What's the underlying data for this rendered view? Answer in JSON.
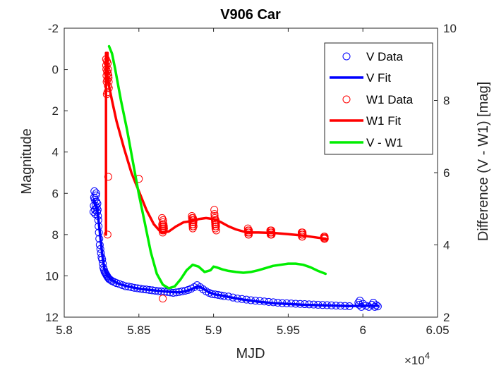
{
  "chart_data": {
    "type": "line",
    "title": "V906 Car",
    "xlabel": "MJD",
    "ylabel_left": "Magnitude",
    "ylabel_right": "Difference (V - W1) [mag]",
    "x_multiplier_label": "×10",
    "x_multiplier_exp": "4",
    "xlim": [
      58000,
      60500
    ],
    "ylim_left": [
      12,
      -2
    ],
    "ylim_right": [
      2,
      10
    ],
    "x_ticks": [
      58000,
      58500,
      59000,
      59500,
      60000,
      60500
    ],
    "x_tick_labels": [
      "5.8",
      "5.85",
      "5.9",
      "5.95",
      "6",
      "6.05"
    ],
    "y_left_ticks": [
      -2,
      0,
      2,
      4,
      6,
      8,
      10,
      12
    ],
    "y_left_tick_labels": [
      "-2",
      "0",
      "2",
      "4",
      "6",
      "8",
      "10",
      "12"
    ],
    "y_right_ticks": [
      2,
      4,
      6,
      8,
      10
    ],
    "y_right_tick_labels": [
      "2",
      "4",
      "6",
      "8",
      "10"
    ],
    "legend_position": "top-right",
    "colors": {
      "v": "#0000ff",
      "w1": "#ff0000",
      "diff": "#00ee00",
      "axis": "#262626"
    },
    "series": [
      {
        "name": "V Data",
        "kind": "scatter",
        "axis": "left",
        "color": "#0000ff",
        "x": [
          58196,
          58198,
          58200,
          58202,
          58204,
          58206,
          58208,
          58210,
          58212,
          58214,
          58216,
          58218,
          58220,
          58222,
          58224,
          58226,
          58228,
          58230,
          58232,
          58235,
          58238,
          58242,
          58246,
          58250,
          58254,
          58258,
          58262,
          58266,
          58270,
          58274,
          58278,
          58282,
          58286,
          58290,
          58295,
          58300,
          58310,
          58320,
          58335,
          58350,
          58370,
          58390,
          58410,
          58430,
          58450,
          58470,
          58490,
          58510,
          58530,
          58550,
          58570,
          58590,
          58610,
          58630,
          58650,
          58670,
          58690,
          58710,
          58730,
          58750,
          58770,
          58790,
          58810,
          58830,
          58850,
          58870,
          58890,
          58910,
          58930,
          58950,
          58970,
          58990,
          59010,
          59030,
          59050,
          59070,
          59100,
          59130,
          59160,
          59190,
          59220,
          59250,
          59280,
          59310,
          59340,
          59370,
          59400,
          59430,
          59460,
          59490,
          59520,
          59550,
          59580,
          59610,
          59640,
          59670,
          59700,
          59730,
          59760,
          59790,
          59820,
          59850,
          59880,
          59910,
          59970,
          59975,
          59980,
          59990,
          60000,
          60020,
          60040,
          60060,
          60070,
          60080,
          60090,
          60100
        ],
        "values": [
          6.9,
          6.6,
          6.2,
          5.9,
          6.3,
          6.8,
          7.0,
          6.6,
          6.1,
          6.0,
          6.4,
          6.7,
          6.9,
          6.5,
          6.8,
          7.1,
          7.3,
          7.6,
          7.9,
          8.2,
          8.5,
          8.7,
          8.9,
          9.1,
          9.2,
          9.4,
          9.6,
          9.7,
          9.8,
          9.85,
          9.9,
          9.95,
          10.0,
          10.05,
          10.1,
          10.15,
          10.2,
          10.25,
          10.3,
          10.35,
          10.4,
          10.45,
          10.5,
          10.52,
          10.55,
          10.58,
          10.6,
          10.62,
          10.65,
          10.66,
          10.68,
          10.7,
          10.72,
          10.74,
          10.75,
          10.76,
          10.78,
          10.8,
          10.82,
          10.8,
          10.78,
          10.75,
          10.72,
          10.68,
          10.62,
          10.55,
          10.45,
          10.55,
          10.65,
          10.75,
          10.82,
          10.88,
          10.9,
          10.92,
          10.95,
          10.98,
          11.0,
          11.05,
          11.1,
          11.12,
          11.15,
          11.18,
          11.2,
          11.22,
          11.24,
          11.26,
          11.28,
          11.3,
          11.32,
          11.33,
          11.34,
          11.35,
          11.36,
          11.37,
          11.38,
          11.39,
          11.4,
          11.41,
          11.42,
          11.43,
          11.44,
          11.45,
          11.46,
          11.47,
          11.3,
          11.4,
          11.2,
          11.5,
          11.35,
          11.45,
          11.5,
          11.4,
          11.3,
          11.5,
          11.42,
          11.48
        ]
      },
      {
        "name": "V Fit",
        "kind": "line",
        "axis": "left",
        "color": "#0000ff",
        "x": [
          58196,
          58210,
          58225,
          58240,
          58255,
          58270,
          58290,
          58310,
          58340,
          58380,
          58420,
          58470,
          58520,
          58570,
          58620,
          58670,
          58720,
          58770,
          58810,
          58850,
          58880,
          58900,
          58930,
          58970,
          59010,
          59060,
          59120,
          59200,
          59300,
          59400,
          59500,
          59600,
          59700,
          59800,
          59900,
          60000,
          60100
        ],
        "values": [
          6.3,
          6.5,
          7.0,
          8.0,
          9.0,
          9.7,
          10.0,
          10.15,
          10.3,
          10.42,
          10.5,
          10.58,
          10.64,
          10.68,
          10.72,
          10.75,
          10.78,
          10.8,
          10.75,
          10.65,
          10.55,
          10.5,
          10.62,
          10.8,
          10.9,
          10.96,
          11.05,
          11.15,
          11.25,
          11.32,
          11.36,
          11.4,
          11.42,
          11.44,
          11.46,
          11.45,
          11.45
        ]
      },
      {
        "name": "W1 Data",
        "kind": "scatter",
        "axis": "left",
        "color": "#ff0000",
        "x": [
          58280,
          58281,
          58282,
          58283,
          58284,
          58285,
          58286,
          58287,
          58288,
          58289,
          58290,
          58291,
          58292,
          58293,
          58294,
          58295,
          58296,
          58297,
          58298,
          58299,
          58500,
          58655,
          58656,
          58657,
          58658,
          58659,
          58660,
          58661,
          58662,
          58663,
          58664,
          58665,
          58666,
          58667,
          58668,
          58855,
          58856,
          58857,
          58858,
          58859,
          58860,
          58861,
          58862,
          58863,
          58864,
          58865,
          58866,
          58867,
          59005,
          59006,
          59007,
          59008,
          59009,
          59010,
          59011,
          59012,
          59013,
          59014,
          59015,
          59016,
          59017,
          59018,
          59230,
          59231,
          59232,
          59233,
          59234,
          59235,
          59236,
          59237,
          59238,
          59380,
          59381,
          59382,
          59383,
          59384,
          59385,
          59386,
          59387,
          59388,
          59389,
          59590,
          59591,
          59592,
          59593,
          59594,
          59595,
          59596,
          59597,
          59740,
          59741,
          59742,
          59743,
          59744,
          59745,
          58660
        ],
        "values": [
          -0.5,
          -0.2,
          0.0,
          0.3,
          0.6,
          1.2,
          -0.4,
          0.1,
          0.5,
          1.1,
          8.0,
          -0.3,
          0.2,
          0.8,
          0.0,
          5.2,
          0.3,
          0.4,
          0.6,
          0.9,
          5.3,
          7.2,
          7.5,
          7.6,
          7.7,
          7.8,
          7.9,
          7.4,
          7.3,
          7.6,
          7.7,
          7.5,
          7.8,
          7.6,
          7.7,
          7.1,
          7.2,
          7.3,
          7.4,
          7.5,
          7.6,
          7.7,
          7.2,
          7.3,
          7.5,
          7.4,
          7.6,
          7.3,
          6.8,
          7.0,
          7.1,
          7.2,
          7.3,
          7.4,
          7.5,
          7.6,
          7.7,
          7.3,
          7.4,
          7.5,
          7.6,
          7.8,
          7.7,
          7.8,
          7.9,
          8.0,
          7.8,
          7.9,
          8.0,
          7.8,
          7.9,
          7.8,
          7.9,
          8.0,
          7.8,
          7.9,
          8.0,
          7.9,
          7.8,
          7.9,
          8.0,
          7.9,
          8.0,
          8.1,
          7.9,
          8.0,
          8.1,
          7.9,
          8.0,
          8.1,
          8.2,
          8.15,
          8.2,
          8.1,
          8.2,
          11.1
        ]
      },
      {
        "name": "W1 Fit",
        "kind": "line",
        "axis": "left",
        "color": "#ff0000",
        "x": [
          58280,
          58280,
          58290,
          58290,
          58300,
          58320,
          58350,
          58400,
          58450,
          58500,
          58550,
          58600,
          58650,
          58700,
          58750,
          58800,
          58850,
          58900,
          58950,
          59000,
          59050,
          59100,
          59150,
          59200,
          59250,
          59300,
          59400,
          59500,
          59600,
          59700,
          59750
        ],
        "values": [
          8.0,
          -0.8,
          -0.8,
          0.4,
          0.8,
          1.5,
          2.5,
          3.8,
          5.0,
          5.9,
          6.8,
          7.5,
          7.9,
          7.85,
          7.6,
          7.4,
          7.35,
          7.25,
          7.2,
          7.25,
          7.4,
          7.6,
          7.75,
          7.85,
          7.9,
          7.9,
          7.92,
          7.98,
          8.05,
          8.15,
          8.2
        ]
      },
      {
        "name": "V - W1",
        "kind": "line",
        "axis": "right",
        "color": "#00ee00",
        "x": [
          58300,
          58320,
          58340,
          58380,
          58420,
          58460,
          58500,
          58540,
          58580,
          58620,
          58660,
          58700,
          58740,
          58780,
          58820,
          58860,
          58900,
          58940,
          58980,
          59000,
          59020,
          59060,
          59100,
          59150,
          59200,
          59250,
          59300,
          59350,
          59400,
          59450,
          59500,
          59550,
          59600,
          59650,
          59700,
          59750
        ],
        "values": [
          9.5,
          9.3,
          8.9,
          8.0,
          7.2,
          6.3,
          5.4,
          4.6,
          3.8,
          3.2,
          2.9,
          2.8,
          2.85,
          3.05,
          3.3,
          3.45,
          3.4,
          3.25,
          3.3,
          3.4,
          3.38,
          3.32,
          3.28,
          3.25,
          3.23,
          3.25,
          3.3,
          3.36,
          3.42,
          3.45,
          3.48,
          3.48,
          3.45,
          3.38,
          3.28,
          3.2
        ]
      }
    ]
  }
}
